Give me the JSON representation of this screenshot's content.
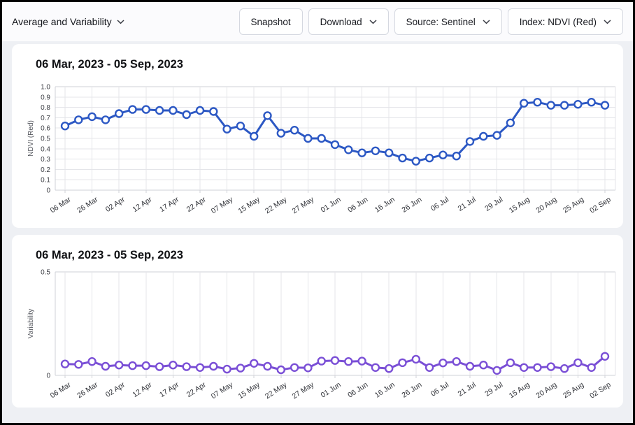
{
  "window": {
    "background": "#eef0f4",
    "border_color": "#000000"
  },
  "toolbar": {
    "view_selector": {
      "label": "Average and Variability"
    },
    "buttons": [
      {
        "label": "Snapshot",
        "has_chevron": false
      },
      {
        "label": "Download",
        "has_chevron": true
      },
      {
        "label": "Source: Sentinel",
        "has_chevron": true
      },
      {
        "label": "Index: NDVI (Red)",
        "has_chevron": true
      }
    ]
  },
  "chart_data": [
    {
      "type": "line",
      "title": "06 Mar, 2023 - 05 Sep, 2023",
      "xlabel": "",
      "ylabel": "NDVI (Red)",
      "ylim": [
        0,
        1.0
      ],
      "yticks": [
        {
          "label": "1.0",
          "value": 1.0
        },
        {
          "label": "0.9",
          "value": 0.9
        },
        {
          "label": "0.8",
          "value": 0.8
        },
        {
          "label": "0.7",
          "value": 0.7
        },
        {
          "label": "0.6",
          "value": 0.6
        },
        {
          "label": "0.5",
          "value": 0.5
        },
        {
          "label": "0.4",
          "value": 0.4
        },
        {
          "label": "0.3",
          "value": 0.3
        },
        {
          "label": "0.2",
          "value": 0.2
        },
        {
          "label": "0.1",
          "value": 0.1
        },
        {
          "label": "0",
          "value": 0
        }
      ],
      "x_tick_labels": [
        "06 Mar",
        "26 Mar",
        "02 Apr",
        "12 Apr",
        "17 Apr",
        "22 Apr",
        "07 May",
        "15 May",
        "22 May",
        "27 May",
        "01 Jun",
        "06 Jun",
        "16 Jun",
        "26 Jun",
        "06 Jul",
        "21 Jul",
        "29 Jul",
        "15 Aug",
        "20 Aug",
        "25 Aug",
        "02 Sep"
      ],
      "label_every": 2,
      "values": [
        0.62,
        0.68,
        0.71,
        0.68,
        0.74,
        0.78,
        0.78,
        0.77,
        0.77,
        0.73,
        0.77,
        0.76,
        0.59,
        0.62,
        0.52,
        0.72,
        0.55,
        0.58,
        0.5,
        0.5,
        0.44,
        0.39,
        0.36,
        0.38,
        0.36,
        0.31,
        0.28,
        0.31,
        0.34,
        0.33,
        0.47,
        0.52,
        0.53,
        0.65,
        0.84,
        0.85,
        0.82,
        0.82,
        0.83,
        0.85,
        0.82
      ],
      "line_color": "#2c58c4",
      "marker": "open-circle",
      "grid": true,
      "legend": "none"
    },
    {
      "type": "line",
      "title": "06 Mar, 2023 - 05 Sep, 2023",
      "xlabel": "",
      "ylabel": "Variability",
      "ylim": [
        0,
        0.5
      ],
      "yticks": [
        {
          "label": "0.5",
          "value": 0.5
        },
        {
          "label": "0",
          "value": 0
        }
      ],
      "x_tick_labels": [
        "06 Mar",
        "26 Mar",
        "02 Apr",
        "12 Apr",
        "17 Apr",
        "22 Apr",
        "07 May",
        "15 May",
        "22 May",
        "27 May",
        "01 Jun",
        "06 Jun",
        "16 Jun",
        "26 Jun",
        "06 Jul",
        "21 Jul",
        "29 Jul",
        "15 Aug",
        "20 Aug",
        "25 Aug",
        "02 Sep"
      ],
      "label_every": 2,
      "values": [
        0.055,
        0.053,
        0.067,
        0.044,
        0.05,
        0.047,
        0.047,
        0.042,
        0.05,
        0.042,
        0.038,
        0.044,
        0.03,
        0.035,
        0.058,
        0.044,
        0.027,
        0.038,
        0.036,
        0.069,
        0.072,
        0.067,
        0.069,
        0.038,
        0.033,
        0.061,
        0.078,
        0.038,
        0.06,
        0.067,
        0.044,
        0.05,
        0.024,
        0.061,
        0.038,
        0.038,
        0.042,
        0.033,
        0.061,
        0.038,
        0.092
      ],
      "line_color": "#7a4fd6",
      "marker": "open-circle",
      "grid": true,
      "legend": "none"
    }
  ]
}
